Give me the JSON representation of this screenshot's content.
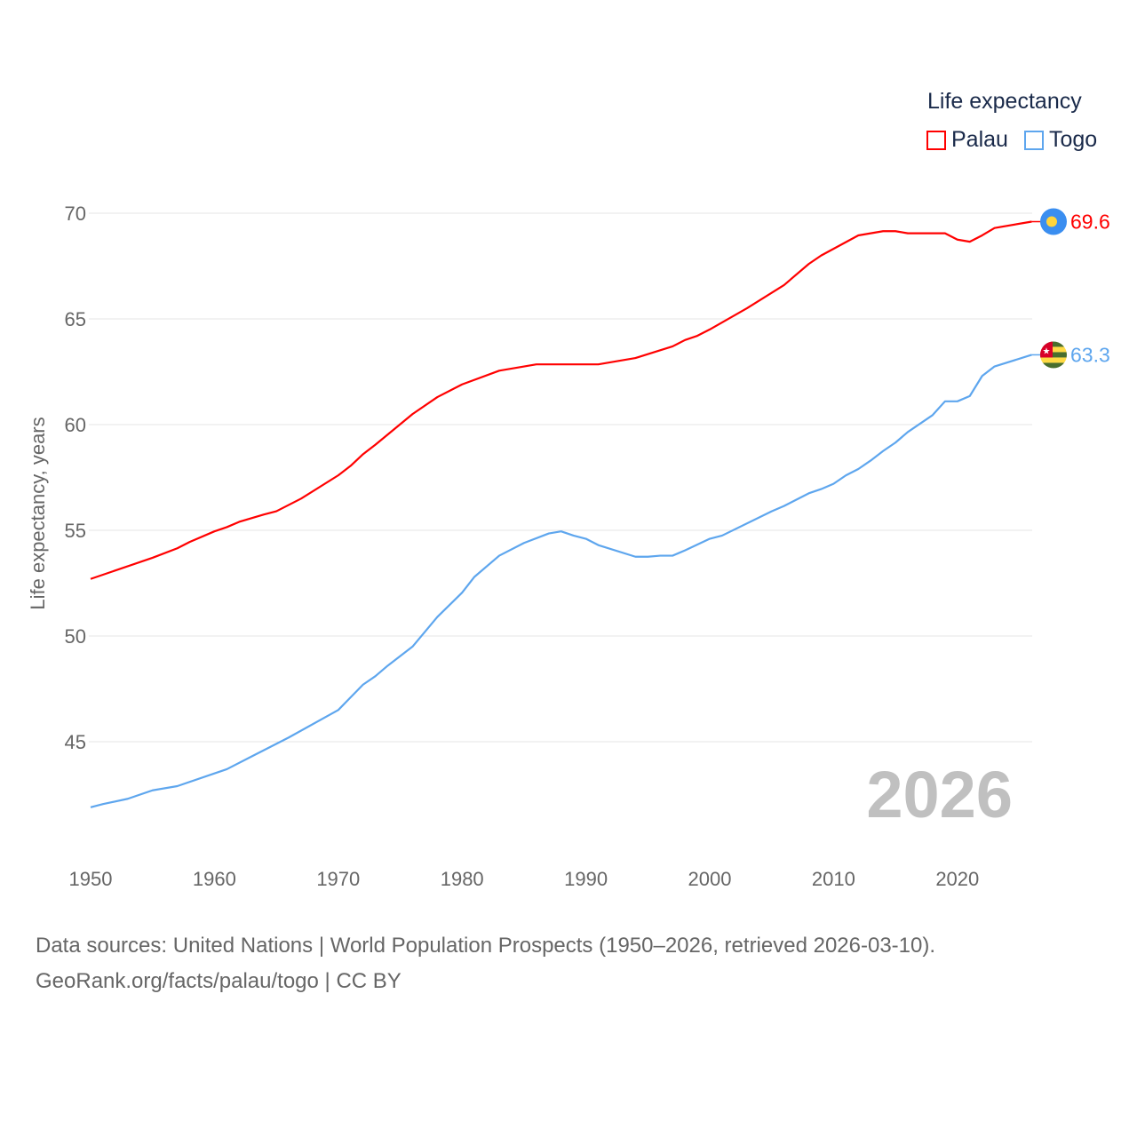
{
  "chart_data": {
    "type": "line",
    "ylabel": "Life expectancy, years",
    "xlabel": "",
    "xlim": [
      1950,
      2026
    ],
    "ylim": [
      41,
      71
    ],
    "xticks": [
      "1950",
      "1960",
      "1970",
      "1980",
      "1990",
      "2000",
      "2010",
      "2020"
    ],
    "yticks": [
      "45",
      "50",
      "55",
      "60",
      "65",
      "70"
    ],
    "grid": true,
    "legend": {
      "title": "Life expectancy",
      "placement": "top-right"
    },
    "year_label": "2026",
    "series": [
      {
        "name": "Palau",
        "color": "#ff0000",
        "end_label": "69.6",
        "flag": "palau-flag",
        "x": [
          1950,
          1955,
          1957,
          1958,
          1960,
          1961,
          1962,
          1964,
          1965,
          1967,
          1970,
          1971,
          1972,
          1973,
          1976,
          1978,
          1980,
          1983,
          1986,
          1991,
          1994,
          1997,
          1998,
          1999,
          2000,
          2003,
          2006,
          2008,
          2009,
          2012,
          2014,
          2015,
          2016,
          2019,
          2020,
          2021,
          2022,
          2023,
          2026
        ],
        "values": [
          52.7,
          53.7,
          54.15,
          54.45,
          54.95,
          55.15,
          55.4,
          55.75,
          55.9,
          56.5,
          57.6,
          58.05,
          58.6,
          59.05,
          60.5,
          61.3,
          61.9,
          62.55,
          62.85,
          62.85,
          63.15,
          63.7,
          64.0,
          64.2,
          64.5,
          65.5,
          66.6,
          67.6,
          68.0,
          68.95,
          69.15,
          69.15,
          69.05,
          69.05,
          68.75,
          68.65,
          68.95,
          69.3,
          69.6
        ]
      },
      {
        "name": "Togo",
        "color": "#5ea6ee",
        "end_label": "63.3",
        "flag": "togo-flag",
        "x": [
          1950,
          1951,
          1953,
          1955,
          1957,
          1960,
          1961,
          1963,
          1966,
          1970,
          1971,
          1972,
          1973,
          1974,
          1976,
          1978,
          1980,
          1981,
          1983,
          1985,
          1987,
          1988,
          1989,
          1990,
          1991,
          1994,
          1995,
          1996,
          1997,
          1998,
          2000,
          2001,
          2005,
          2006,
          2008,
          2009,
          2010,
          2011,
          2012,
          2013,
          2014,
          2015,
          2016,
          2018,
          2019,
          2020,
          2021,
          2022,
          2023,
          2026
        ],
        "values": [
          41.9,
          42.05,
          42.3,
          42.7,
          42.9,
          43.5,
          43.7,
          44.3,
          45.2,
          46.5,
          47.1,
          47.7,
          48.1,
          48.6,
          49.5,
          50.9,
          52.05,
          52.8,
          53.8,
          54.4,
          54.85,
          54.95,
          54.75,
          54.6,
          54.3,
          53.75,
          53.75,
          53.8,
          53.8,
          54.05,
          54.6,
          54.75,
          55.9,
          56.15,
          56.75,
          56.95,
          57.2,
          57.6,
          57.9,
          58.3,
          58.75,
          59.15,
          59.65,
          60.45,
          61.1,
          61.1,
          61.35,
          62.3,
          62.75,
          63.3
        ]
      }
    ]
  },
  "footer": {
    "line1": "Data sources: United Nations | World Population Prospects (1950–2026, retrieved 2026-03-10).",
    "line2": "GeoRank.org/facts/palau/togo | CC BY"
  }
}
